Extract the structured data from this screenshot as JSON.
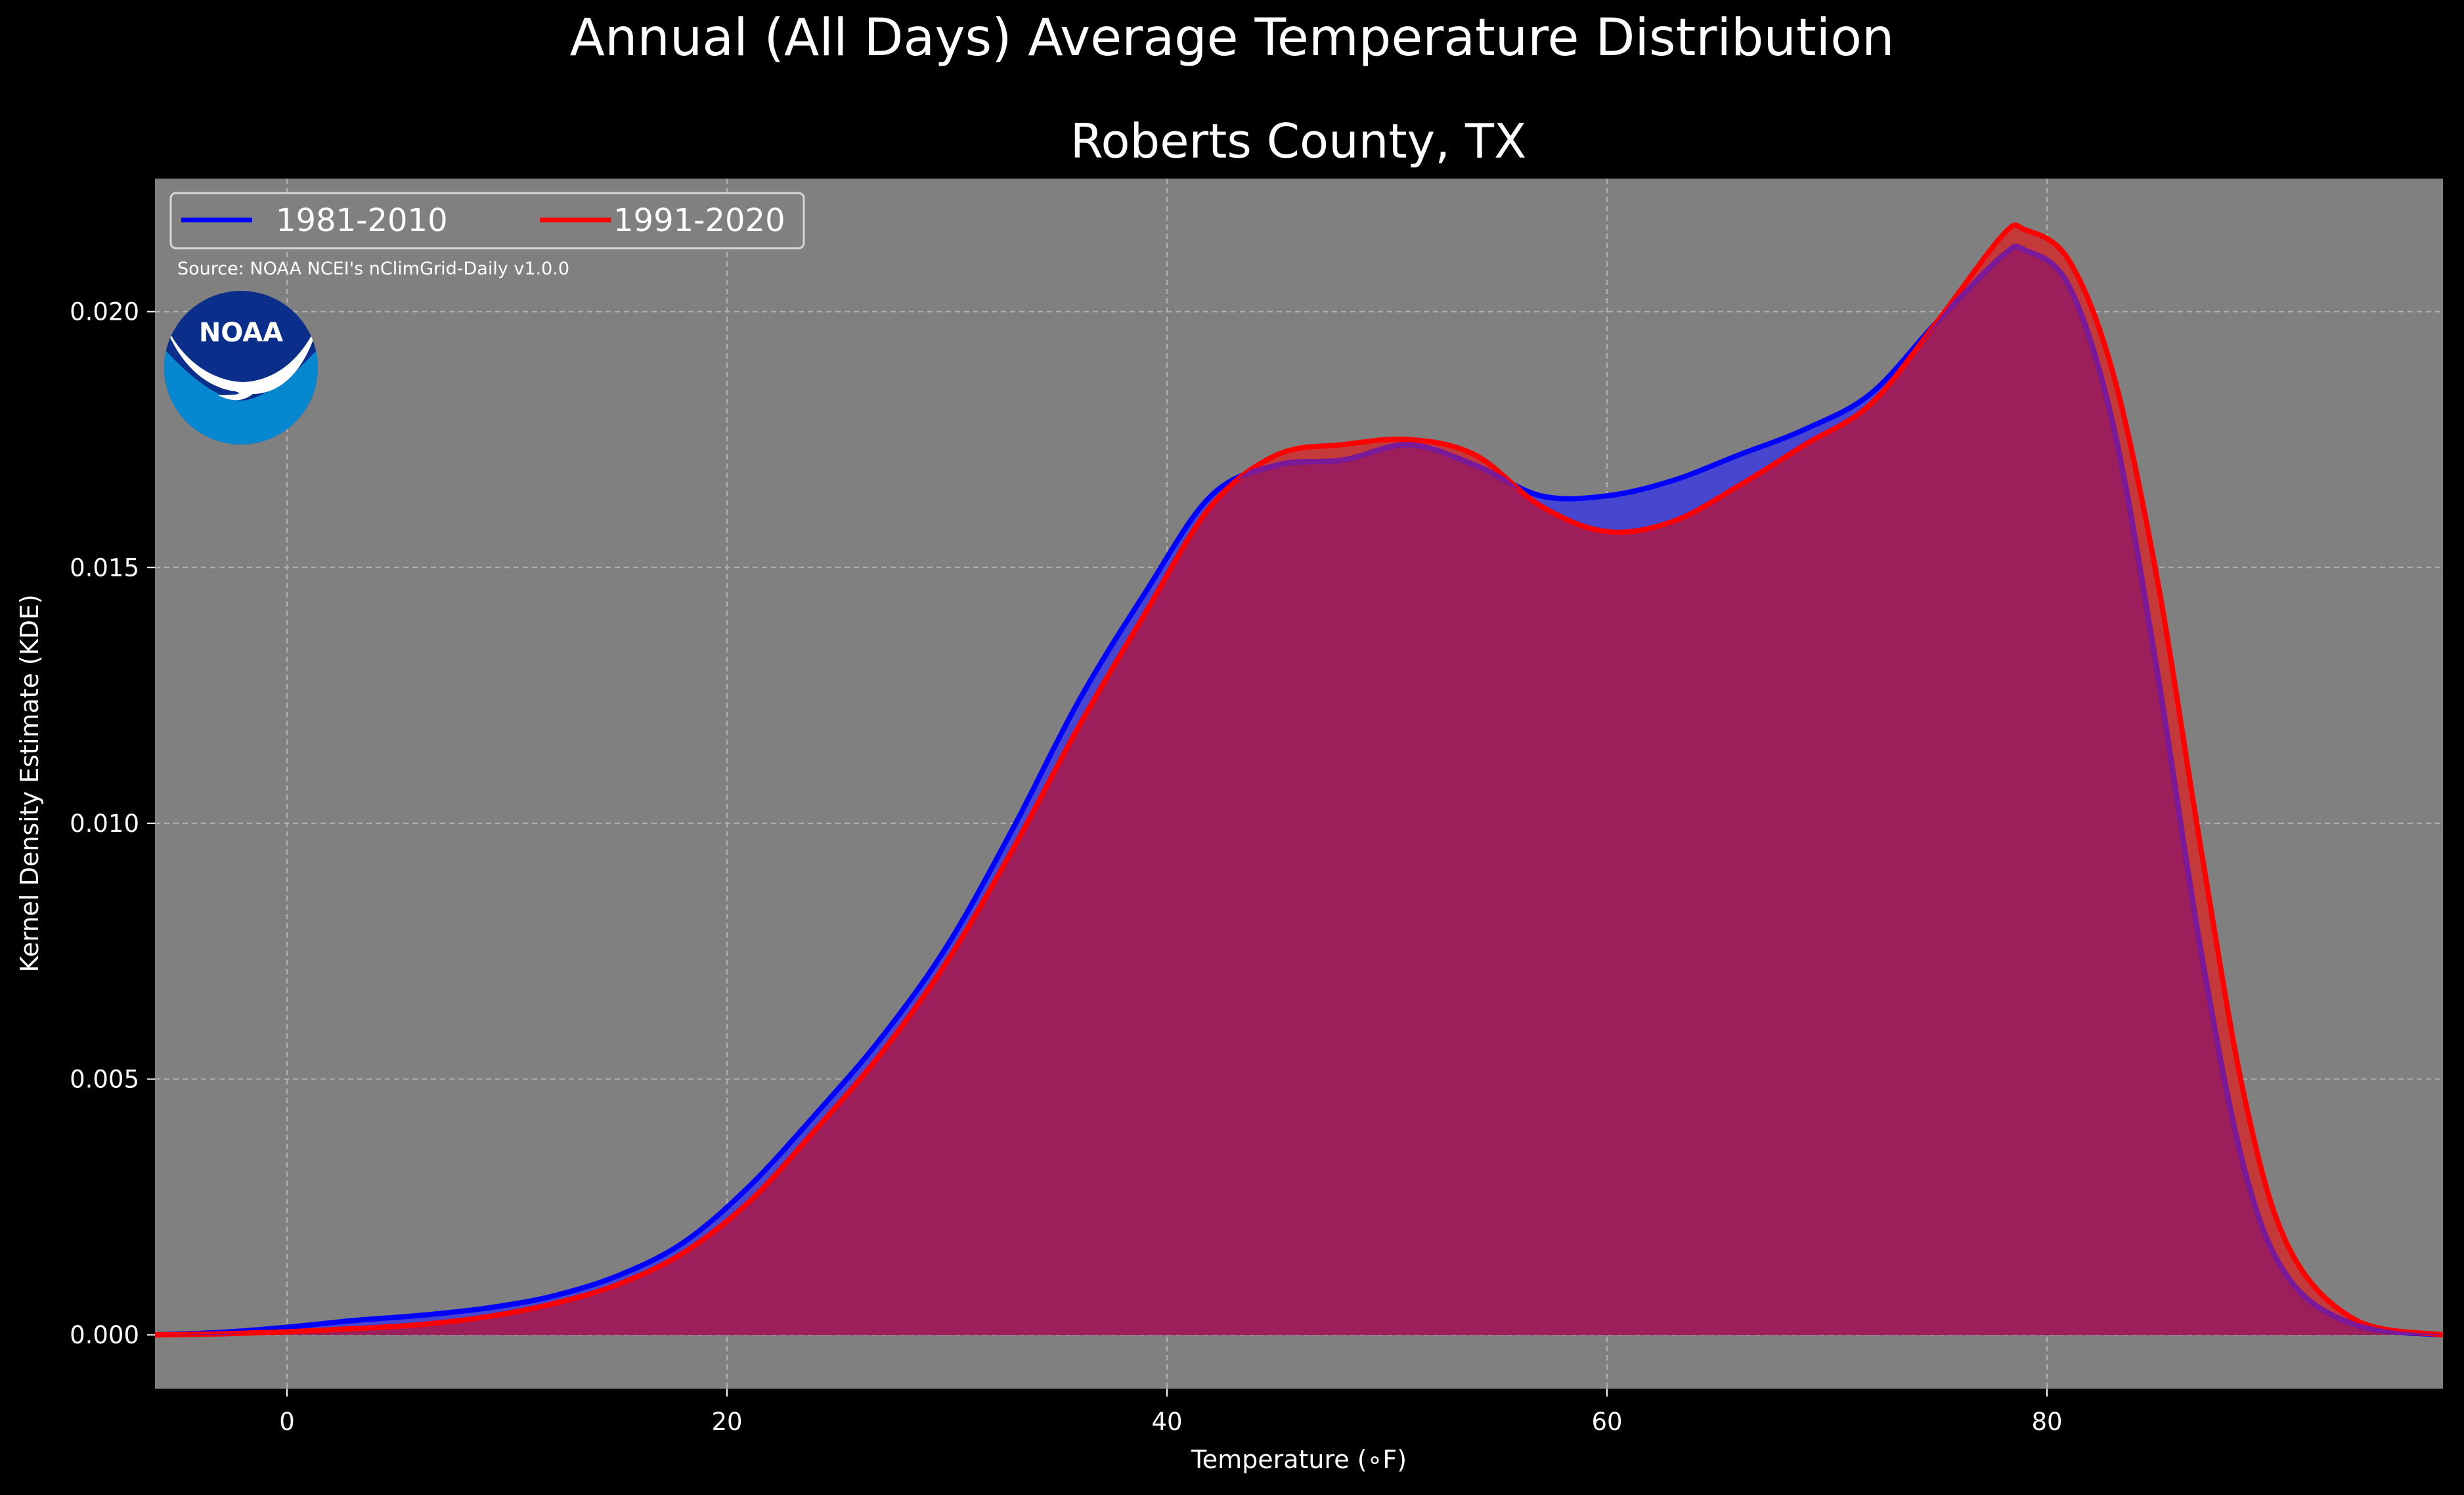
{
  "chart_data": {
    "type": "area",
    "suptitle": "Annual (All Days) Average Temperature Distribution",
    "title": "Roberts County, TX",
    "xlabel": "Temperature (∘F)",
    "ylabel": "Kernel Density Estimate (KDE)",
    "xlim": [
      -6,
      98
    ],
    "ylim": [
      -0.00105,
      0.0226
    ],
    "xticks": [
      0,
      20,
      40,
      60,
      80
    ],
    "xtick_labels": [
      "0",
      "20",
      "40",
      "60",
      "80"
    ],
    "yticks": [
      0.0,
      0.005,
      0.01,
      0.015,
      0.02
    ],
    "ytick_labels": [
      "0.000",
      "0.005",
      "0.010",
      "0.015",
      "0.020"
    ],
    "grid": true,
    "legend_position": "top-left",
    "source_note": "Source: NOAA NCEI's nClimGrid-Daily v1.0.0",
    "logo_text": "NOAA",
    "colors": {
      "background": "#000000",
      "plot_background": "#808080",
      "text": "#ffffff",
      "grid": "#b0b0b0",
      "series_1981": "#0000ff",
      "series_1991": "#ff0000",
      "overlap": "#9c1f5c",
      "logo_dark": "#0a2e8a",
      "logo_light": "#0787cf"
    },
    "series": [
      {
        "name": "1981-2010",
        "color": "#0000ff",
        "x": [
          -6,
          -3,
          0,
          3,
          6,
          9,
          12,
          15,
          18,
          21,
          24,
          27,
          30,
          33,
          36,
          39,
          42,
          45,
          48,
          51,
          54,
          57,
          60,
          63,
          66,
          69,
          72,
          75,
          78,
          79,
          81,
          83,
          85,
          87,
          89,
          91,
          94,
          98
        ],
        "y": [
          0.0,
          5e-05,
          0.00015,
          0.00028,
          0.00038,
          0.00052,
          0.00075,
          0.00115,
          0.0018,
          0.0029,
          0.0043,
          0.0058,
          0.0076,
          0.0099,
          0.0124,
          0.0145,
          0.0164,
          0.017,
          0.0171,
          0.0174,
          0.017,
          0.0164,
          0.0164,
          0.0167,
          0.0172,
          0.0177,
          0.0184,
          0.0198,
          0.0211,
          0.0212,
          0.0205,
          0.0178,
          0.013,
          0.0075,
          0.0032,
          0.0011,
          0.0002,
          0.0
        ]
      },
      {
        "name": "1991-2020",
        "color": "#ff0000",
        "x": [
          -6,
          -3,
          0,
          3,
          6,
          9,
          12,
          15,
          18,
          21,
          24,
          27,
          30,
          33,
          36,
          39,
          42,
          45,
          48,
          51,
          54,
          57,
          60,
          63,
          66,
          69,
          72,
          75,
          78,
          79,
          81,
          83,
          85,
          87,
          89,
          91,
          94,
          98
        ],
        "y": [
          0.0,
          2e-05,
          6e-05,
          0.00012,
          0.0002,
          0.00035,
          0.0006,
          0.00098,
          0.0016,
          0.0026,
          0.004,
          0.0055,
          0.0073,
          0.0095,
          0.0119,
          0.0141,
          0.0162,
          0.0172,
          0.0174,
          0.0175,
          0.0172,
          0.0162,
          0.0157,
          0.0159,
          0.0166,
          0.0174,
          0.0182,
          0.0198,
          0.0215,
          0.0216,
          0.021,
          0.0188,
          0.0148,
          0.0095,
          0.0046,
          0.0017,
          0.0003,
          0.0
        ]
      }
    ]
  }
}
